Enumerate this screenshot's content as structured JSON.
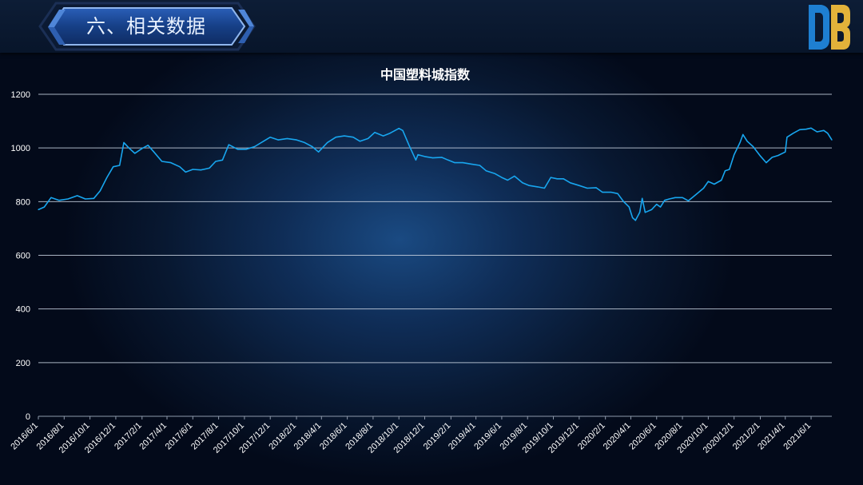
{
  "header": {
    "section_title": "六、相关数据",
    "logo_icon": "db-brand-logo"
  },
  "colors": {
    "line": "#18a6ef",
    "grid": "#c8d2e0",
    "logo_blue": "#1e7fd1",
    "logo_gold": "#e2b23a"
  },
  "chart_data": {
    "type": "line",
    "title": "中国塑料城指数",
    "xlabel": "",
    "ylabel": "",
    "ylim": [
      0,
      1200
    ],
    "yticks": [
      "0",
      "200",
      "400",
      "600",
      "800",
      "1000",
      "1200"
    ],
    "xlim": [
      "2016-06-01",
      "2021-07-20"
    ],
    "xticks": [
      "2016/6/1",
      "2016/8/1",
      "2016/10/1",
      "2016/12/1",
      "2017/2/1",
      "2017/4/1",
      "2017/6/1",
      "2017/8/1",
      "2017/10/1",
      "2017/12/1",
      "2018/2/1",
      "2018/4/1",
      "2018/6/1",
      "2018/8/1",
      "2018/10/1",
      "2018/12/1",
      "2019/2/1",
      "2019/4/1",
      "2019/6/1",
      "2019/8/1",
      "2019/10/1",
      "2019/12/1",
      "2020/2/1",
      "2020/4/1",
      "2020/6/1",
      "2020/8/1",
      "2020/10/1",
      "2020/12/1",
      "2021/2/1",
      "2021/4/1",
      "2021/6/1"
    ],
    "grid": true,
    "legend": "none",
    "series": [
      {
        "points": [
          [
            "2016-06-01",
            770
          ],
          [
            "2016-06-15",
            780
          ],
          [
            "2016-07-01",
            815
          ],
          [
            "2016-07-20",
            805
          ],
          [
            "2016-08-10",
            810
          ],
          [
            "2016-09-01",
            822
          ],
          [
            "2016-09-20",
            810
          ],
          [
            "2016-10-10",
            812
          ],
          [
            "2016-10-25",
            840
          ],
          [
            "2016-11-10",
            890
          ],
          [
            "2016-11-25",
            930
          ],
          [
            "2016-12-10",
            935
          ],
          [
            "2016-12-20",
            1020
          ],
          [
            "2017-01-01",
            1000
          ],
          [
            "2017-01-15",
            980
          ],
          [
            "2017-02-01",
            998
          ],
          [
            "2017-02-15",
            1010
          ],
          [
            "2017-03-01",
            985
          ],
          [
            "2017-03-20",
            950
          ],
          [
            "2017-04-10",
            945
          ],
          [
            "2017-05-01",
            930
          ],
          [
            "2017-05-15",
            910
          ],
          [
            "2017-06-01",
            920
          ],
          [
            "2017-06-20",
            918
          ],
          [
            "2017-07-10",
            925
          ],
          [
            "2017-07-25",
            950
          ],
          [
            "2017-08-10",
            955
          ],
          [
            "2017-08-25",
            1012
          ],
          [
            "2017-09-15",
            995
          ],
          [
            "2017-10-05",
            995
          ],
          [
            "2017-10-25",
            1005
          ],
          [
            "2017-11-15",
            1025
          ],
          [
            "2017-12-01",
            1040
          ],
          [
            "2017-12-20",
            1030
          ],
          [
            "2018-01-10",
            1035
          ],
          [
            "2018-02-01",
            1030
          ],
          [
            "2018-02-20",
            1020
          ],
          [
            "2018-03-10",
            1005
          ],
          [
            "2018-03-25",
            985
          ],
          [
            "2018-04-15",
            1020
          ],
          [
            "2018-05-05",
            1040
          ],
          [
            "2018-05-25",
            1045
          ],
          [
            "2018-06-15",
            1040
          ],
          [
            "2018-07-01",
            1025
          ],
          [
            "2018-07-20",
            1035
          ],
          [
            "2018-08-05",
            1058
          ],
          [
            "2018-08-25",
            1045
          ],
          [
            "2018-09-10",
            1055
          ],
          [
            "2018-10-01",
            1073
          ],
          [
            "2018-10-10",
            1065
          ],
          [
            "2018-10-25",
            1010
          ],
          [
            "2018-11-10",
            955
          ],
          [
            "2018-11-15",
            975
          ],
          [
            "2018-12-01",
            968
          ],
          [
            "2018-12-20",
            963
          ],
          [
            "2019-01-10",
            965
          ],
          [
            "2019-01-25",
            955
          ],
          [
            "2019-02-10",
            945
          ],
          [
            "2019-03-01",
            945
          ],
          [
            "2019-03-20",
            940
          ],
          [
            "2019-04-10",
            935
          ],
          [
            "2019-04-25",
            915
          ],
          [
            "2019-05-15",
            905
          ],
          [
            "2019-06-01",
            890
          ],
          [
            "2019-06-15",
            880
          ],
          [
            "2019-07-01",
            895
          ],
          [
            "2019-07-20",
            870
          ],
          [
            "2019-08-05",
            860
          ],
          [
            "2019-08-25",
            855
          ],
          [
            "2019-09-10",
            850
          ],
          [
            "2019-09-25",
            890
          ],
          [
            "2019-10-10",
            885
          ],
          [
            "2019-10-25",
            885
          ],
          [
            "2019-11-10",
            870
          ],
          [
            "2019-12-01",
            860
          ],
          [
            "2019-12-20",
            850
          ],
          [
            "2020-01-10",
            852
          ],
          [
            "2020-01-25",
            835
          ],
          [
            "2020-02-15",
            835
          ],
          [
            "2020-03-01",
            830
          ],
          [
            "2020-03-15",
            800
          ],
          [
            "2020-03-28",
            780
          ],
          [
            "2020-04-05",
            740
          ],
          [
            "2020-04-12",
            730
          ],
          [
            "2020-04-22",
            760
          ],
          [
            "2020-04-28",
            812
          ],
          [
            "2020-05-05",
            760
          ],
          [
            "2020-05-20",
            770
          ],
          [
            "2020-06-01",
            790
          ],
          [
            "2020-06-10",
            780
          ],
          [
            "2020-06-20",
            805
          ],
          [
            "2020-07-01",
            810
          ],
          [
            "2020-07-15",
            815
          ],
          [
            "2020-08-01",
            815
          ],
          [
            "2020-08-15",
            803
          ],
          [
            "2020-09-01",
            825
          ],
          [
            "2020-09-20",
            850
          ],
          [
            "2020-10-01",
            875
          ],
          [
            "2020-10-15",
            865
          ],
          [
            "2020-11-01",
            880
          ],
          [
            "2020-11-10",
            915
          ],
          [
            "2020-11-20",
            920
          ],
          [
            "2020-12-01",
            975
          ],
          [
            "2020-12-15",
            1020
          ],
          [
            "2020-12-22",
            1050
          ],
          [
            "2021-01-01",
            1025
          ],
          [
            "2021-01-15",
            1005
          ],
          [
            "2021-02-01",
            970
          ],
          [
            "2021-02-15",
            945
          ],
          [
            "2021-03-01",
            965
          ],
          [
            "2021-03-15",
            972
          ],
          [
            "2021-04-01",
            985
          ],
          [
            "2021-04-05",
            1040
          ],
          [
            "2021-04-20",
            1055
          ],
          [
            "2021-05-05",
            1068
          ],
          [
            "2021-05-20",
            1070
          ],
          [
            "2021-06-01",
            1074
          ],
          [
            "2021-06-15",
            1060
          ],
          [
            "2021-07-01",
            1065
          ],
          [
            "2021-07-10",
            1055
          ],
          [
            "2021-07-20",
            1030
          ]
        ]
      }
    ]
  }
}
